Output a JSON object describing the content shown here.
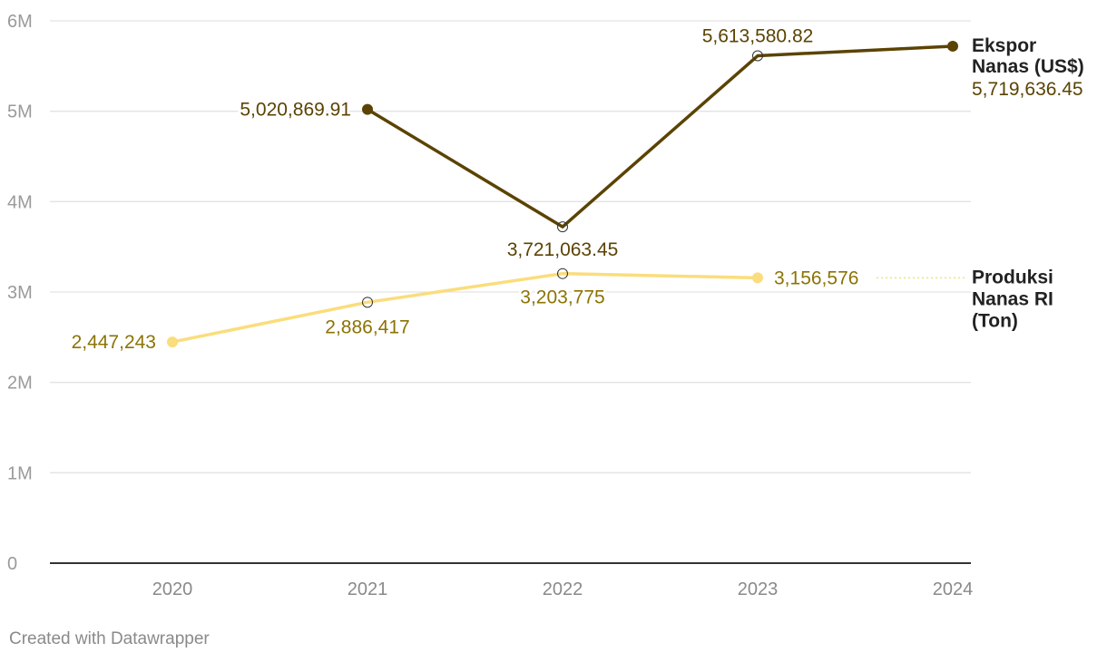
{
  "chart_data": {
    "type": "line",
    "x": [
      "2020",
      "2021",
      "2022",
      "2023",
      "2024"
    ],
    "ylim": [
      0,
      6000000
    ],
    "y_ticks": [
      {
        "value": 0,
        "label": "0"
      },
      {
        "value": 1000000,
        "label": "1M"
      },
      {
        "value": 2000000,
        "label": "2M"
      },
      {
        "value": 3000000,
        "label": "3M"
      },
      {
        "value": 4000000,
        "label": "4M"
      },
      {
        "value": 5000000,
        "label": "5M"
      },
      {
        "value": 6000000,
        "label": "6M"
      }
    ],
    "grid": true,
    "series": [
      {
        "name": "Ekspor Nanas (US$)",
        "name_lines": [
          "Ekspor",
          "Nanas (US$)"
        ],
        "color": "#5b4303",
        "label_color": "#5b4303",
        "values": [
          null,
          5020869.91,
          3721063.45,
          5613580.82,
          5719636.45
        ],
        "labels": [
          "",
          "5,020,869.91",
          "3,721,063.45",
          "5,613,580.82",
          "5,719,636.45"
        ],
        "end_label": "5,719,636.45"
      },
      {
        "name": "Produksi Nanas RI (Ton)",
        "name_lines": [
          "Produksi",
          "Nanas RI",
          "(Ton)"
        ],
        "color": "#fadd7c",
        "label_color": "#8c7304",
        "values": [
          2447243,
          2886417,
          3203775,
          3156576,
          null
        ],
        "labels": [
          "2,447,243",
          "2,886,417",
          "3,203,775",
          "3,156,576",
          ""
        ]
      }
    ]
  },
  "footer": {
    "credit": "Created with Datawrapper"
  }
}
